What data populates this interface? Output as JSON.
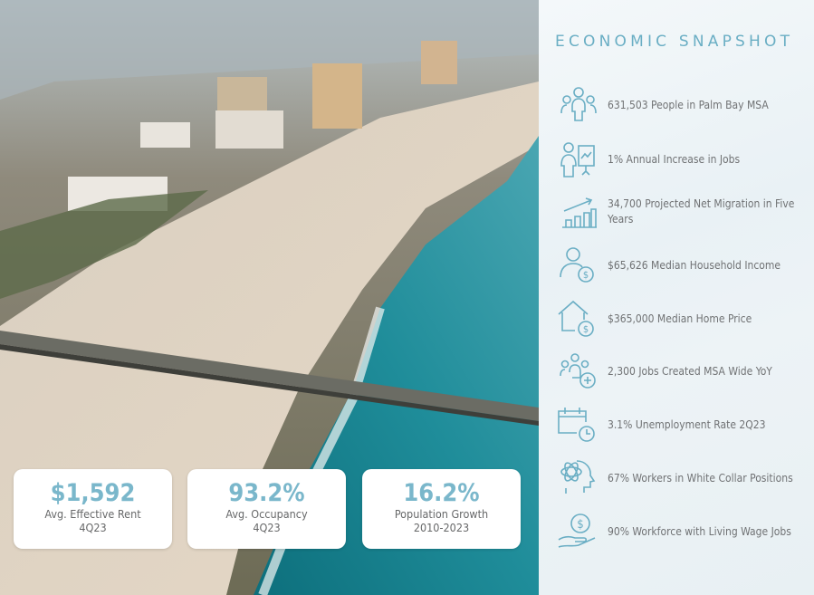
{
  "colors": {
    "accent": "#6aaec4",
    "text": "#707274",
    "card_value": "#7ab7cb"
  },
  "snapshot": {
    "title": "ECONOMIC SNAPSHOT",
    "items": [
      {
        "icon": "people-group-icon",
        "text": "631,503 People in Palm Bay MSA"
      },
      {
        "icon": "presenter-chart-icon",
        "text": "1% Annual Increase in Jobs"
      },
      {
        "icon": "growth-bar-chart-icon",
        "text": "34,700 Projected Net Migration in Five Years"
      },
      {
        "icon": "person-dollar-icon",
        "text": "$65,626 Median Household Income"
      },
      {
        "icon": "house-dollar-icon",
        "text": "$365,000 Median Home Price"
      },
      {
        "icon": "people-add-icon",
        "text": "2,300 Jobs Created MSA Wide YoY"
      },
      {
        "icon": "calendar-clock-icon",
        "text": "3.1% Unemployment Rate 2Q23"
      },
      {
        "icon": "head-atom-icon",
        "text": "67% Workers in White Collar Positions"
      },
      {
        "icon": "hand-coin-icon",
        "text": "90% Workforce with Living Wage Jobs"
      }
    ]
  },
  "cards": [
    {
      "value": "$1,592",
      "label": "Avg. Effective Rent",
      "period": "4Q23"
    },
    {
      "value": "93.2%",
      "label": "Avg. Occupancy",
      "period": "4Q23"
    },
    {
      "value": "16.2%",
      "label": "Population Growth",
      "period": "2010-2023"
    }
  ]
}
